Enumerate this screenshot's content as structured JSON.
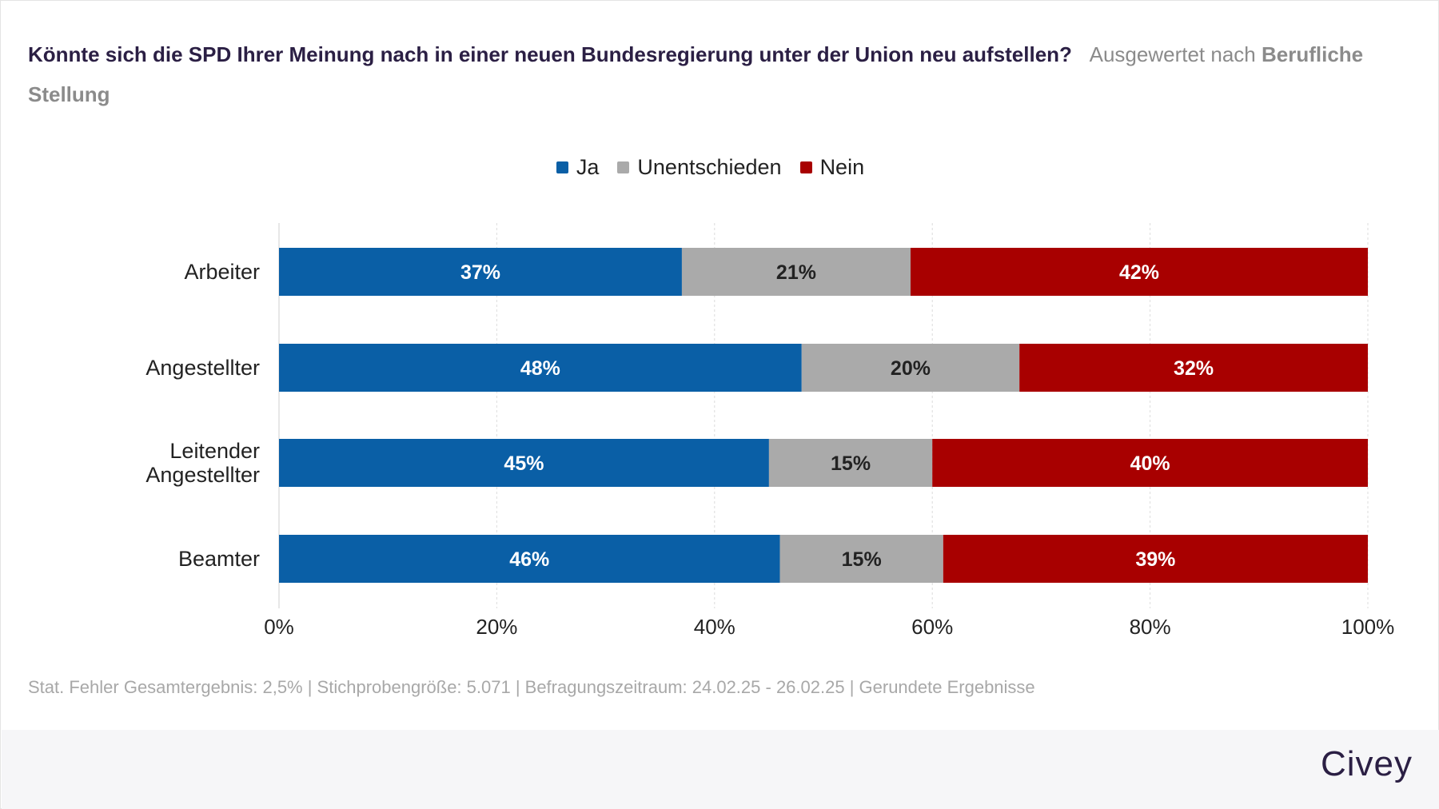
{
  "title": "Könnte sich die SPD Ihrer Meinung nach in einer neuen Bundesregierung unter der Union neu aufstellen?",
  "subtitle_part1": "Ausgewertet nach",
  "subtitle_part2": "Berufliche Stellung",
  "footer_note": "Stat. Fehler Gesamtergebnis: 2,5% | Stichprobengröße: 5.071 | Befragungszeitraum: 24.02.25 - 26.02.25 | Gerundete Ergebnisse",
  "brand": "Civey",
  "chart_data": {
    "type": "bar",
    "orientation": "horizontal",
    "stacked": true,
    "categories": [
      "Arbeiter",
      "Angestellter",
      "Leitender Angestellter",
      "Beamter"
    ],
    "series": [
      {
        "name": "Ja",
        "color": "#0a5fa6",
        "label_color": "#ffffff",
        "values": [
          37,
          48,
          45,
          46
        ]
      },
      {
        "name": "Unentschieden",
        "color": "#aaaaaa",
        "label_color": "#222222",
        "values": [
          21,
          20,
          15,
          15
        ]
      },
      {
        "name": "Nein",
        "color": "#a80000",
        "label_color": "#ffffff",
        "values": [
          42,
          32,
          40,
          39
        ]
      }
    ],
    "value_suffix": "%",
    "xlim": [
      0,
      100
    ],
    "xticks": [
      "0%",
      "20%",
      "40%",
      "60%",
      "80%",
      "100%"
    ],
    "grid": true,
    "legend_position": "top"
  }
}
